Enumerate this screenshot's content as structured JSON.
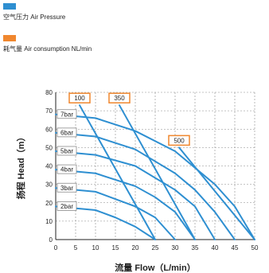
{
  "legend": [
    {
      "label": "空气压力 Air Pressure",
      "color": "#2e8fd1"
    },
    {
      "label": "耗气量 Air consumption NL/min",
      "color": "#f0872e"
    }
  ],
  "chart_data": {
    "type": "line",
    "xlabel": "流量 Flow（L/min）",
    "ylabel": "扬程 Head（m）",
    "xlim": [
      0,
      50
    ],
    "ylim": [
      0,
      80
    ],
    "x_ticks": [
      "0",
      "5",
      "10",
      "15",
      "20",
      "25",
      "30",
      "35",
      "40",
      "45",
      "50"
    ],
    "y_ticks": [
      "0",
      "10",
      "20",
      "30",
      "40",
      "50",
      "60",
      "70",
      "80"
    ],
    "grid": true,
    "pressure_color": "#2e8fd1",
    "consumption_color": "#f0872e",
    "pressure_curves": [
      {
        "name": "7bar",
        "x": [
          0,
          10,
          20,
          30,
          40,
          45,
          50
        ],
        "y": [
          68,
          66,
          59,
          48,
          30,
          18,
          0
        ]
      },
      {
        "name": "6bar",
        "x": [
          0,
          10,
          20,
          30,
          35,
          40,
          45
        ],
        "y": [
          58,
          56,
          49,
          36,
          27,
          15,
          0
        ]
      },
      {
        "name": "5bar",
        "x": [
          0,
          10,
          20,
          30,
          35,
          40
        ],
        "y": [
          48,
          46,
          40,
          27,
          18,
          0
        ]
      },
      {
        "name": "4bar",
        "x": [
          0,
          10,
          20,
          25,
          30,
          35
        ],
        "y": [
          38,
          36,
          29,
          23,
          15,
          0
        ]
      },
      {
        "name": "3bar",
        "x": [
          0,
          10,
          20,
          25,
          30
        ],
        "y": [
          28,
          26,
          18,
          12,
          0
        ]
      },
      {
        "name": "2bar",
        "x": [
          0,
          10,
          15,
          20,
          25
        ],
        "y": [
          18,
          16,
          12,
          7,
          0
        ]
      }
    ],
    "consumption_curves": [
      {
        "name": "100",
        "x": [
          6,
          25
        ],
        "y": [
          73,
          0
        ]
      },
      {
        "name": "350",
        "x": [
          16,
          35
        ],
        "y": [
          73,
          0
        ]
      },
      {
        "name": "500",
        "x": [
          31,
          50
        ],
        "y": [
          50,
          0
        ]
      }
    ]
  }
}
